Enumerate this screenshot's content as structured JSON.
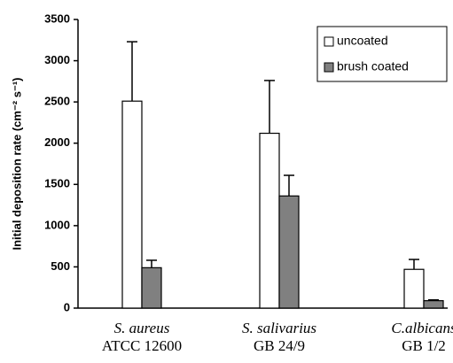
{
  "chart_data": {
    "type": "bar",
    "y_label": "Initial deposition rate (cm⁻² s⁻¹)",
    "categories": [
      [
        "S. aureus",
        "ATCC 12600"
      ],
      [
        "S. salivarius",
        "GB 24/9"
      ],
      [
        "C.albicans",
        "GB 1/2"
      ]
    ],
    "series": [
      {
        "name": "uncoated",
        "color": "#ffffff",
        "values": [
          2510,
          2120,
          470
        ],
        "errors": [
          720,
          640,
          120
        ]
      },
      {
        "name": "brush coated",
        "color": "#808080",
        "values": [
          490,
          1360,
          90
        ],
        "errors": [
          90,
          250,
          10
        ]
      }
    ],
    "ylim": [
      0,
      3500
    ],
    "yticks": [
      0,
      500,
      1000,
      1500,
      2000,
      2500,
      3000,
      3500
    ],
    "legend": "upper right"
  }
}
